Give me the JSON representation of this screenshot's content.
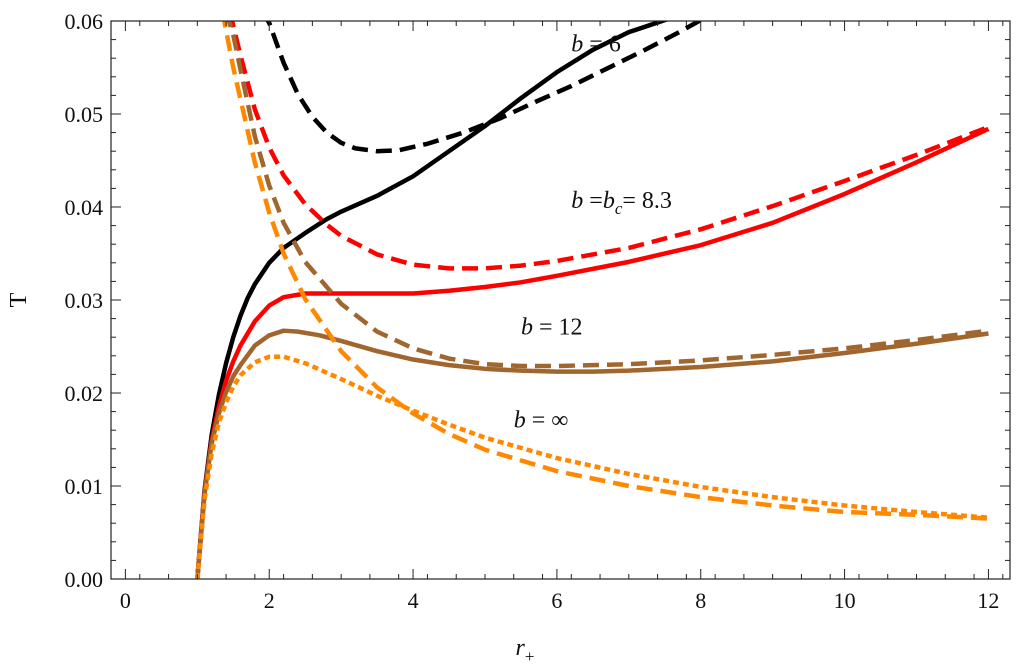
{
  "chart_data": {
    "type": "line",
    "title": "",
    "xlabel": "r",
    "xlabel_sub": "+",
    "ylabel": "T",
    "xlim": [
      -0.2,
      12.3
    ],
    "ylim": [
      0,
      0.06
    ],
    "xticks": [
      0,
      2,
      4,
      6,
      8,
      10,
      12
    ],
    "yticks": [
      0,
      0.01,
      0.02,
      0.03,
      0.04,
      0.05,
      0.06
    ],
    "xtick_labels": [
      "0",
      "2",
      "4",
      "6",
      "8",
      "10",
      "12"
    ],
    "ytick_labels": [
      "0.00",
      "0.01",
      "0.02",
      "0.03",
      "0.04",
      "0.05",
      "0.06"
    ],
    "grid": false,
    "legend": "none",
    "annotations": [
      {
        "text": "b = 6",
        "x": 6.2,
        "y": 0.0567
      },
      {
        "text": "b =bc= 8.3",
        "x": 6.2,
        "y": 0.0399
      },
      {
        "text": "b = 12",
        "x": 5.5,
        "y": 0.0263
      },
      {
        "text": "b = ∞",
        "x": 5.4,
        "y": 0.0163
      }
    ],
    "series": [
      {
        "color": "#000000",
        "style": "solid",
        "x": [
          1.0,
          1.1,
          1.2,
          1.3,
          1.4,
          1.5,
          1.6,
          1.7,
          1.8,
          2.0,
          2.2,
          2.5,
          2.8,
          3.0,
          3.5,
          4.0,
          4.5,
          5.0,
          5.5,
          6.0,
          6.5,
          7.0,
          7.5,
          7.9
        ],
        "y": [
          0.0,
          0.0095,
          0.0155,
          0.0198,
          0.0232,
          0.026,
          0.0283,
          0.0302,
          0.0317,
          0.034,
          0.0356,
          0.0372,
          0.0387,
          0.0395,
          0.0412,
          0.0433,
          0.046,
          0.0487,
          0.0517,
          0.0545,
          0.0569,
          0.0588,
          0.0601,
          0.061
        ]
      },
      {
        "color": "#000000",
        "style": "dashed",
        "x": [
          1.9,
          2.0,
          2.2,
          2.4,
          2.6,
          2.8,
          3.0,
          3.2,
          3.5,
          3.8,
          4.2,
          4.7,
          5.2,
          5.7,
          6.2,
          6.7,
          7.2,
          7.7,
          8.0
        ],
        "y": [
          0.061,
          0.0598,
          0.0555,
          0.0521,
          0.0497,
          0.048,
          0.0469,
          0.0463,
          0.046,
          0.0461,
          0.0468,
          0.048,
          0.0495,
          0.0513,
          0.053,
          0.0549,
          0.0568,
          0.0588,
          0.0601
        ]
      },
      {
        "color": "#ff0000",
        "style": "solid",
        "x": [
          1.0,
          1.1,
          1.2,
          1.3,
          1.4,
          1.5,
          1.6,
          1.8,
          2.0,
          2.2,
          2.5,
          3.0,
          3.5,
          4.0,
          4.5,
          5.0,
          5.5,
          6.0,
          7.0,
          8.0,
          9.0,
          10.0,
          11.0,
          12.0
        ],
        "y": [
          0.0,
          0.0093,
          0.0149,
          0.0185,
          0.0213,
          0.0234,
          0.0251,
          0.0277,
          0.0294,
          0.0303,
          0.0307,
          0.0307,
          0.0307,
          0.0307,
          0.031,
          0.0314,
          0.0319,
          0.0326,
          0.0341,
          0.0359,
          0.0383,
          0.0414,
          0.0448,
          0.0484
        ]
      },
      {
        "color": "#ff0000",
        "style": "dashed",
        "x": [
          1.45,
          1.5,
          1.6,
          1.8,
          2.0,
          2.2,
          2.5,
          2.8,
          3.0,
          3.5,
          4.0,
          4.5,
          5.0,
          5.5,
          6.0,
          7.0,
          8.0,
          9.0,
          10.0,
          11.0,
          12.0
        ],
        "y": [
          0.061,
          0.0595,
          0.0563,
          0.0505,
          0.0464,
          0.0434,
          0.0403,
          0.0381,
          0.0369,
          0.0349,
          0.0338,
          0.0334,
          0.0334,
          0.0337,
          0.0342,
          0.0356,
          0.0376,
          0.0401,
          0.0428,
          0.0456,
          0.0486
        ]
      },
      {
        "color": "#a0662e",
        "style": "solid",
        "x": [
          1.0,
          1.1,
          1.2,
          1.3,
          1.4,
          1.5,
          1.6,
          1.8,
          2.0,
          2.2,
          2.4,
          2.7,
          3.0,
          3.5,
          4.0,
          4.5,
          5.0,
          5.5,
          6.0,
          6.5,
          7.0,
          8.0,
          9.0,
          10.0,
          11.0,
          12.0
        ],
        "y": [
          0.0,
          0.0091,
          0.0146,
          0.0178,
          0.0201,
          0.0218,
          0.023,
          0.0251,
          0.0262,
          0.0267,
          0.0266,
          0.0262,
          0.0256,
          0.0245,
          0.0236,
          0.023,
          0.0226,
          0.0224,
          0.0223,
          0.0223,
          0.0224,
          0.0228,
          0.0234,
          0.0243,
          0.0253,
          0.0264
        ]
      },
      {
        "color": "#a0662e",
        "style": "dashed",
        "x": [
          1.4,
          1.5,
          1.6,
          1.8,
          2.0,
          2.2,
          2.5,
          3.0,
          3.5,
          4.0,
          4.5,
          5.0,
          5.5,
          6.0,
          6.5,
          7.0,
          8.0,
          9.0,
          10.0,
          11.0,
          12.0
        ],
        "y": [
          0.061,
          0.0585,
          0.0548,
          0.0476,
          0.0423,
          0.0383,
          0.0341,
          0.0296,
          0.0266,
          0.0248,
          0.0237,
          0.0231,
          0.0229,
          0.0229,
          0.023,
          0.0231,
          0.0235,
          0.0241,
          0.0248,
          0.0257,
          0.0267
        ]
      },
      {
        "color": "#ff8800",
        "style": "dashed",
        "x": [
          1.35,
          1.5,
          1.6,
          1.8,
          2.0,
          2.2,
          2.5,
          3.0,
          3.5,
          4.0,
          4.5,
          5.0,
          6.0,
          7.0,
          8.0,
          9.0,
          10.0,
          11.0,
          12.0
        ],
        "y": [
          0.061,
          0.055,
          0.0516,
          0.0448,
          0.0394,
          0.035,
          0.0301,
          0.0245,
          0.0206,
          0.0178,
          0.0156,
          0.0139,
          0.0116,
          0.01,
          0.0088,
          0.0079,
          0.0072,
          0.0069,
          0.0065
        ]
      },
      {
        "color": "#ff8800",
        "style": "dotted",
        "x": [
          1.0,
          1.1,
          1.2,
          1.3,
          1.4,
          1.5,
          1.6,
          1.8,
          2.0,
          2.2,
          2.5,
          3.0,
          3.5,
          4.0,
          4.5,
          5.0,
          6.0,
          7.0,
          8.0,
          9.0,
          10.0,
          11.0,
          12.0
        ],
        "y": [
          0.0,
          0.0085,
          0.0135,
          0.0168,
          0.019,
          0.0207,
          0.0219,
          0.0233,
          0.0239,
          0.0239,
          0.0232,
          0.0215,
          0.0197,
          0.0181,
          0.0166,
          0.0152,
          0.013,
          0.0113,
          0.0099,
          0.0088,
          0.0079,
          0.0072,
          0.0066
        ]
      }
    ]
  }
}
